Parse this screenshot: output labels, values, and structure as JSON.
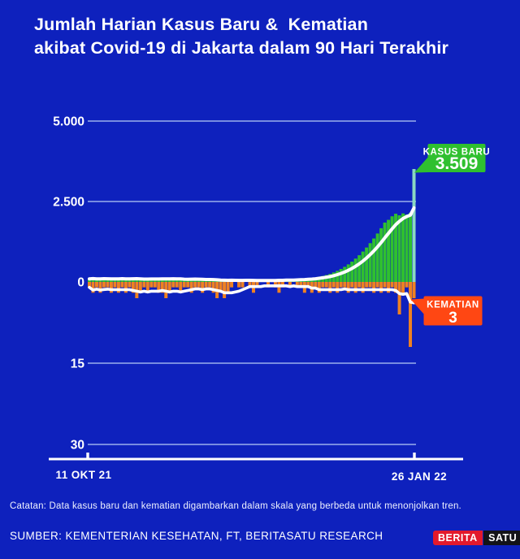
{
  "page": {
    "background_color": "#0e21bd"
  },
  "header": {
    "title_line1": "Jumlah Harian Kasus Baru &  Kematian",
    "title_line2": "akibat Covid-19 di Jakarta dalam 90 Hari Terakhir"
  },
  "footer": {
    "note": "Catatan: Data kasus baru dan kematian digambarkan dalam skala yang berbeda untuk menonjolkan tren.",
    "source": "SUMBER: KEMENTERIAN KESEHATAN, FT, BERITASATU RESEARCH",
    "logo": {
      "part1": "BERITA",
      "part2": "SATU",
      "part1_bg": "#e3192c",
      "part2_bg": "#131318"
    }
  },
  "chart_data": {
    "type": "bar",
    "title": "Jumlah Harian Kasus Baru & Kematian akibat Covid-19 di Jakarta dalam 90 Hari Terakhir",
    "x_axis": {
      "start_label": "11 OKT 21",
      "end_label": "26 JAN 22",
      "days": 90
    },
    "upper_axis": {
      "name": "kasus baru",
      "tick_labels": [
        "5.000",
        "2.500",
        "0"
      ],
      "tick_values": [
        5000,
        2500,
        0
      ],
      "max": 5000
    },
    "lower_axis": {
      "name": "kematian",
      "tick_labels": [
        "15",
        "30"
      ],
      "tick_values": [
        15,
        30
      ],
      "max": 30,
      "inverted": true
    },
    "latest": {
      "kasus_baru": 3509,
      "kematian": 3
    },
    "callouts": [
      {
        "id": "kasus",
        "label": "KASUS BARU",
        "value": "3.509",
        "color": "#2fc02f"
      },
      {
        "id": "kematian",
        "label": "KEMATIAN",
        "value": "3",
        "color": "#ff4713"
      }
    ],
    "colors": {
      "cases_bar": "#2fc02f",
      "cases_bar_highlight": "#8bd8c2",
      "deaths_bar": "#ee8122",
      "trend_line": "#ffffff",
      "gridline": "#b9cdf5",
      "axis": "#ffffff",
      "text": "#ffffff"
    },
    "legend_position": "none",
    "grid": true,
    "trend_line": "7-day moving average (white)",
    "series": [
      {
        "name": "kasus_baru",
        "values": [
          95,
          110,
          75,
          100,
          120,
          85,
          70,
          105,
          125,
          95,
          80,
          100,
          115,
          90,
          75,
          65,
          90,
          110,
          100,
          115,
          95,
          75,
          85,
          105,
          95,
          80,
          65,
          75,
          95,
          105,
          80,
          60,
          50,
          65,
          55,
          45,
          40,
          55,
          50,
          60,
          45,
          40,
          50,
          55,
          45,
          38,
          35,
          45,
          55,
          50,
          45,
          55,
          60,
          52,
          65,
          60,
          70,
          78,
          88,
          98,
          108,
          120,
          135,
          160,
          185,
          215,
          250,
          295,
          345,
          405,
          470,
          545,
          630,
          725,
          830,
          945,
          1070,
          1205,
          1350,
          1505,
          1670,
          1845,
          1930,
          2040,
          2120,
          2070,
          2130,
          2095,
          2145,
          3509
        ]
      },
      {
        "name": "kematian",
        "values": [
          1,
          2,
          1,
          2,
          1,
          1,
          2,
          1,
          2,
          1,
          2,
          1,
          2,
          3,
          2,
          1,
          2,
          1,
          1,
          2,
          2,
          3,
          2,
          1,
          1,
          2,
          1,
          1,
          2,
          1,
          1,
          2,
          1,
          1,
          2,
          3,
          2,
          3,
          2,
          1,
          0,
          1,
          1,
          0,
          1,
          2,
          1,
          0,
          0,
          1,
          0,
          1,
          2,
          1,
          0,
          1,
          0,
          1,
          1,
          2,
          1,
          2,
          1,
          2,
          1,
          1,
          2,
          1,
          2,
          1,
          1,
          2,
          1,
          2,
          1,
          2,
          1,
          1,
          2,
          1,
          2,
          1,
          2,
          1,
          2,
          6,
          2,
          1,
          12,
          3
        ]
      }
    ]
  }
}
